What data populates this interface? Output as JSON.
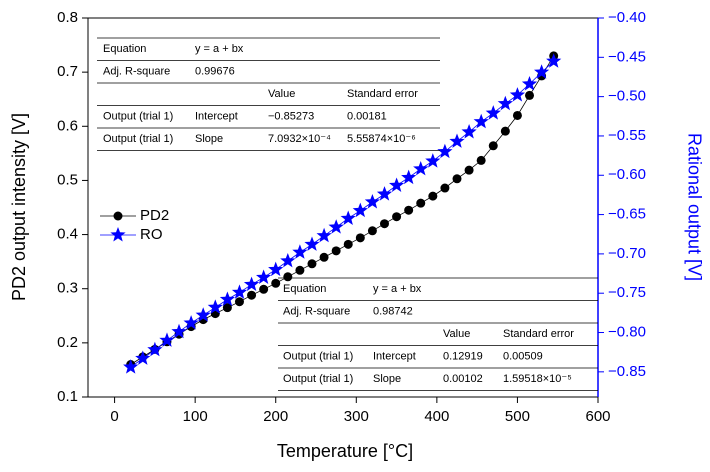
{
  "chart_data": {
    "type": "scatter-line",
    "x_label": "Temperature [°C]",
    "y_label": "PD2 output intensity [V]",
    "y2_label": "Rational output [V]",
    "x": [
      20,
      35,
      50,
      65,
      80,
      95,
      110,
      125,
      140,
      155,
      170,
      185,
      200,
      215,
      230,
      245,
      260,
      275,
      290,
      305,
      320,
      335,
      350,
      365,
      380,
      395,
      410,
      425,
      440,
      455,
      470,
      485,
      500,
      515,
      530,
      545
    ],
    "series": [
      {
        "name": "PD2",
        "color": "#000000",
        "marker": "circle",
        "values": [
          0.16,
          0.174,
          0.188,
          0.202,
          0.216,
          0.23,
          0.243,
          0.254,
          0.265,
          0.276,
          0.288,
          0.299,
          0.31,
          0.322,
          0.334,
          0.346,
          0.358,
          0.37,
          0.382,
          0.394,
          0.407,
          0.42,
          0.433,
          0.445,
          0.458,
          0.471,
          0.486,
          0.503,
          0.519,
          0.537,
          0.564,
          0.591,
          0.62,
          0.657,
          0.693,
          0.73
        ]
      },
      {
        "name": "RO",
        "color": "#0000ff",
        "marker": "star",
        "axis": "y2",
        "values": [
          -0.844,
          -0.833,
          -0.822,
          -0.81,
          -0.799,
          -0.788,
          -0.778,
          -0.768,
          -0.758,
          -0.749,
          -0.739,
          -0.73,
          -0.72,
          -0.709,
          -0.698,
          -0.688,
          -0.677,
          -0.666,
          -0.655,
          -0.645,
          -0.634,
          -0.624,
          -0.613,
          -0.603,
          -0.592,
          -0.582,
          -0.57,
          -0.557,
          -0.545,
          -0.532,
          -0.521,
          -0.509,
          -0.498,
          -0.484,
          -0.469,
          -0.455
        ]
      }
    ],
    "xlim": [
      -33,
      600
    ],
    "xticks": [
      0,
      100,
      200,
      300,
      400,
      500,
      600
    ],
    "ylim": [
      0.1,
      0.8
    ],
    "yticks": [
      0.1,
      0.2,
      0.3,
      0.4,
      0.5,
      0.6,
      0.7,
      0.8
    ],
    "y2lim": [
      -0.882,
      -0.4
    ],
    "y2ticks": [
      {
        "value": -0.4,
        "label": "−0.40"
      },
      {
        "value": -0.45,
        "label": "−0.45"
      },
      {
        "value": -0.5,
        "label": "−0.50"
      },
      {
        "value": -0.55,
        "label": "−0.55"
      },
      {
        "value": -0.6,
        "label": "−0.60"
      },
      {
        "value": -0.65,
        "label": "−0.65"
      },
      {
        "value": -0.7,
        "label": "−0.70"
      },
      {
        "value": -0.75,
        "label": "−0.75"
      },
      {
        "value": -0.8,
        "label": "−0.80"
      },
      {
        "value": -0.85,
        "label": "−0.85"
      }
    ],
    "legend": "left",
    "tables": [
      {
        "rows": [
          [
            "Equation",
            "y = a + bx"
          ],
          [
            "Adj. R-square",
            "0.99676"
          ],
          [
            "Value",
            "Standard error"
          ],
          [
            "Output (trial 1)",
            "Intercept",
            "−0.85273",
            "0.00181"
          ],
          [
            "Output (trial 1)",
            "Slope",
            "7.0932×10⁻⁴",
            "5.55874×10⁻⁶"
          ]
        ]
      },
      {
        "rows": [
          [
            "Equation",
            "y = a + bx"
          ],
          [
            "Adj. R-square",
            "0.98742"
          ],
          [
            "Value",
            "Standard error"
          ],
          [
            "Output (trial 1)",
            "Intercept",
            "0.12919",
            "0.00509"
          ],
          [
            "Output (trial 1)",
            "Slope",
            "0.00102",
            "1.59518×10⁻⁵"
          ]
        ]
      }
    ]
  }
}
